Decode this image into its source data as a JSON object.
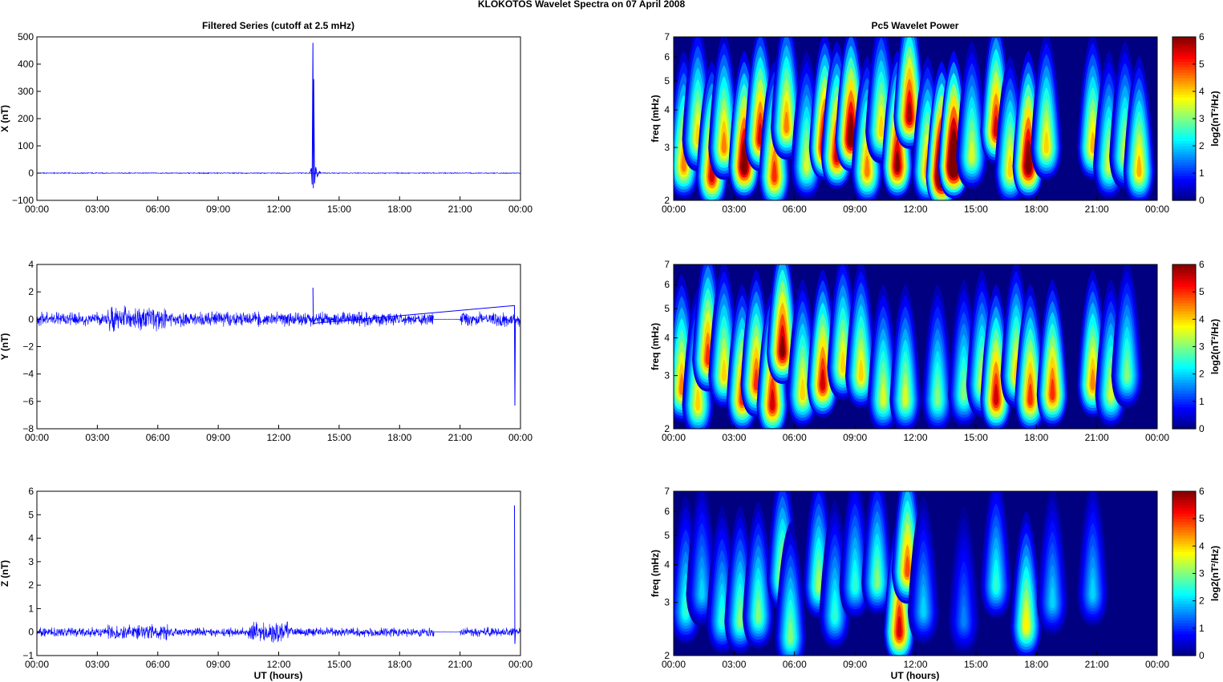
{
  "figure": {
    "title": "KLOKOTOS Wavelet Spectra on 07 April     2008",
    "left_title": "Filtered Series (cutoff at 2.5 mHz)",
    "right_title": "Pc5 Wavelet Power",
    "xlabel": "UT (hours)"
  },
  "colors": {
    "series_line": "#0000ff",
    "background": "#ffffff",
    "axes": "#000000"
  },
  "chart_data": [
    {
      "type": "line",
      "ylabel": "X (nT)",
      "x_ticks": [
        "00:00",
        "03:00",
        "06:00",
        "09:00",
        "12:00",
        "15:00",
        "18:00",
        "21:00",
        "00:00"
      ],
      "y_ticks": [
        "500",
        "400",
        "300",
        "200",
        "100",
        "0",
        "−100"
      ],
      "ylim": [
        -100,
        500
      ],
      "xlim_hours": [
        0,
        24
      ],
      "series": [
        {
          "noise_amplitude": 1.5,
          "gaps_hours": [],
          "spikes": [
            {
              "t": 13.55,
              "y": 0
            },
            {
              "t": 13.62,
              "y": 18
            },
            {
              "t": 13.66,
              "y": -42
            },
            {
              "t": 13.7,
              "y": 478
            },
            {
              "t": 13.72,
              "y": -55
            },
            {
              "t": 13.74,
              "y": 345
            },
            {
              "t": 13.78,
              "y": -38
            },
            {
              "t": 13.84,
              "y": 22
            },
            {
              "t": 13.92,
              "y": -12
            },
            {
              "t": 14.02,
              "y": 6
            },
            {
              "t": 14.1,
              "y": 0
            }
          ]
        }
      ]
    },
    {
      "type": "line",
      "ylabel": "Y (nT)",
      "x_ticks": [
        "00:00",
        "03:00",
        "06:00",
        "09:00",
        "12:00",
        "15:00",
        "18:00",
        "21:00",
        "00:00"
      ],
      "y_ticks": [
        "4",
        "2",
        "0",
        "−2",
        "−4",
        "−6",
        "−8"
      ],
      "ylim": [
        -8,
        4
      ],
      "xlim_hours": [
        0,
        24
      ],
      "series": [
        {
          "noise_amplitude": 0.4,
          "gaps_hours": [
            [
              19.7,
              21.0
            ]
          ],
          "spikes": [
            {
              "t": 13.7,
              "y": 2.3
            },
            {
              "t": 13.72,
              "y": -0.3
            },
            {
              "t": 23.7,
              "y": 1.0
            },
            {
              "t": 23.72,
              "y": -6.3
            },
            {
              "t": 23.75,
              "y": 0
            }
          ]
        }
      ]
    },
    {
      "type": "line",
      "ylabel": "Z (nT)",
      "x_ticks": [
        "00:00",
        "03:00",
        "06:00",
        "09:00",
        "12:00",
        "15:00",
        "18:00",
        "21:00",
        "00:00"
      ],
      "y_ticks": [
        "6",
        "5",
        "4",
        "3",
        "2",
        "1",
        "0",
        "−1"
      ],
      "ylim": [
        -1,
        6
      ],
      "xlim_hours": [
        0,
        24
      ],
      "series": [
        {
          "noise_amplitude": 0.15,
          "gaps_hours": [
            [
              19.7,
              21.0
            ]
          ],
          "spikes": [
            {
              "t": 23.7,
              "y": 5.4
            },
            {
              "t": 23.72,
              "y": -0.5
            },
            {
              "t": 23.75,
              "y": 0
            }
          ]
        }
      ]
    },
    {
      "type": "heatmap",
      "ylabel": "freq (mHz)",
      "x_ticks": [
        "00:00",
        "03:00",
        "06:00",
        "09:00",
        "12:00",
        "15:00",
        "18:00",
        "21:00",
        "00:00"
      ],
      "y_ticks": [
        "7",
        "6",
        "5",
        "4",
        "3",
        "2"
      ],
      "y_tick_values": [
        7,
        6,
        5,
        4,
        3,
        2
      ],
      "ylim_mhz": [
        2,
        7
      ],
      "y_scale": "log",
      "colorbar": {
        "label": "log2(nT²/Hz)",
        "ticks": [
          "6",
          "5",
          "4",
          "3",
          "2",
          "1",
          "0"
        ],
        "range": [
          0,
          6
        ],
        "colormap": "jet"
      },
      "blobs": [
        {
          "t": 0.5,
          "f": 2.6,
          "p": 4.5
        },
        {
          "t": 1.2,
          "f": 3.2,
          "p": 4.0
        },
        {
          "t": 1.9,
          "f": 2.4,
          "p": 5.5
        },
        {
          "t": 2.5,
          "f": 3.0,
          "p": 4.5
        },
        {
          "t": 3.5,
          "f": 2.6,
          "p": 6.5
        },
        {
          "t": 4.3,
          "f": 3.2,
          "p": 5.5
        },
        {
          "t": 5.0,
          "f": 2.4,
          "p": 5.0
        },
        {
          "t": 5.6,
          "f": 3.5,
          "p": 4.5
        },
        {
          "t": 6.6,
          "f": 2.6,
          "p": 3.5
        },
        {
          "t": 7.5,
          "f": 3.0,
          "p": 6.2
        },
        {
          "t": 8.1,
          "f": 2.8,
          "p": 5.6
        },
        {
          "t": 8.8,
          "f": 3.2,
          "p": 6.5
        },
        {
          "t": 9.6,
          "f": 2.5,
          "p": 4.5
        },
        {
          "t": 10.3,
          "f": 3.4,
          "p": 4.0
        },
        {
          "t": 11.1,
          "f": 2.6,
          "p": 6.0
        },
        {
          "t": 11.7,
          "f": 3.8,
          "p": 5.8
        },
        {
          "t": 12.6,
          "f": 2.5,
          "p": 4.5
        },
        {
          "t": 13.3,
          "f": 2.4,
          "p": 8.0
        },
        {
          "t": 13.9,
          "f": 2.6,
          "p": 7.8
        },
        {
          "t": 14.8,
          "f": 2.8,
          "p": 3.5
        },
        {
          "t": 16.0,
          "f": 3.4,
          "p": 5.5
        },
        {
          "t": 16.7,
          "f": 2.5,
          "p": 4.0
        },
        {
          "t": 17.6,
          "f": 2.6,
          "p": 6.5
        },
        {
          "t": 18.5,
          "f": 3.0,
          "p": 4.0
        },
        {
          "t": 20.8,
          "f": 3.0,
          "p": 4.2
        },
        {
          "t": 21.6,
          "f": 2.6,
          "p": 3.5
        },
        {
          "t": 22.4,
          "f": 2.8,
          "p": 3.5
        },
        {
          "t": 23.1,
          "f": 2.5,
          "p": 4.2
        }
      ]
    },
    {
      "type": "heatmap",
      "ylabel": "freq (mHz)",
      "x_ticks": [
        "00:00",
        "03:00",
        "06:00",
        "09:00",
        "12:00",
        "15:00",
        "18:00",
        "21:00",
        "00:00"
      ],
      "y_ticks": [
        "7",
        "6",
        "5",
        "4",
        "3",
        "2"
      ],
      "y_tick_values": [
        7,
        6,
        5,
        4,
        3,
        2
      ],
      "ylim_mhz": [
        2,
        7
      ],
      "y_scale": "log",
      "colorbar": {
        "label": "log2(nT²/Hz)",
        "ticks": [
          "6",
          "5",
          "4",
          "3",
          "2",
          "1",
          "0"
        ],
        "range": [
          0,
          6
        ],
        "colormap": "jet"
      },
      "blobs": [
        {
          "t": 0.4,
          "f": 2.7,
          "p": 4.5
        },
        {
          "t": 1.2,
          "f": 2.4,
          "p": 4.0
        },
        {
          "t": 1.7,
          "f": 3.4,
          "p": 5.0
        },
        {
          "t": 2.5,
          "f": 3.0,
          "p": 4.0
        },
        {
          "t": 3.4,
          "f": 2.5,
          "p": 5.0
        },
        {
          "t": 4.1,
          "f": 2.8,
          "p": 5.0
        },
        {
          "t": 4.9,
          "f": 2.4,
          "p": 5.5
        },
        {
          "t": 5.4,
          "f": 3.6,
          "p": 6.0
        },
        {
          "t": 6.4,
          "f": 2.6,
          "p": 4.0
        },
        {
          "t": 7.4,
          "f": 2.8,
          "p": 5.5
        },
        {
          "t": 8.4,
          "f": 3.2,
          "p": 4.0
        },
        {
          "t": 9.3,
          "f": 3.0,
          "p": 4.0
        },
        {
          "t": 10.4,
          "f": 2.5,
          "p": 3.5
        },
        {
          "t": 11.5,
          "f": 2.5,
          "p": 3.5
        },
        {
          "t": 13.1,
          "f": 2.5,
          "p": 3.0
        },
        {
          "t": 14.4,
          "f": 2.6,
          "p": 3.0
        },
        {
          "t": 15.3,
          "f": 2.8,
          "p": 3.5
        },
        {
          "t": 16.0,
          "f": 2.5,
          "p": 5.5
        },
        {
          "t": 17.0,
          "f": 3.0,
          "p": 4.0
        },
        {
          "t": 17.7,
          "f": 2.5,
          "p": 5.0
        },
        {
          "t": 18.8,
          "f": 2.6,
          "p": 5.0
        },
        {
          "t": 20.8,
          "f": 2.8,
          "p": 4.5
        },
        {
          "t": 21.7,
          "f": 2.6,
          "p": 3.5
        },
        {
          "t": 22.5,
          "f": 3.0,
          "p": 3.0
        }
      ]
    },
    {
      "type": "heatmap",
      "ylabel": "freq (mHz)",
      "x_ticks": [
        "00:00",
        "03:00",
        "06:00",
        "09:00",
        "12:00",
        "15:00",
        "18:00",
        "21:00",
        "00:00"
      ],
      "y_ticks": [
        "7",
        "6",
        "5",
        "4",
        "3",
        "2"
      ],
      "y_tick_values": [
        7,
        6,
        5,
        4,
        3,
        2
      ],
      "ylim_mhz": [
        2,
        7
      ],
      "y_scale": "log",
      "colorbar": {
        "label": "log2(nT²/Hz)",
        "ticks": [
          "6",
          "5",
          "4",
          "3",
          "2",
          "1",
          "0"
        ],
        "range": [
          0,
          6
        ],
        "colormap": "jet"
      },
      "blobs": [
        {
          "t": 0.6,
          "f": 2.8,
          "p": 2.5
        },
        {
          "t": 1.4,
          "f": 3.2,
          "p": 2.0
        },
        {
          "t": 2.4,
          "f": 2.6,
          "p": 2.5
        },
        {
          "t": 3.3,
          "f": 2.6,
          "p": 3.0
        },
        {
          "t": 4.2,
          "f": 2.7,
          "p": 3.0
        },
        {
          "t": 5.4,
          "f": 3.6,
          "p": 3.5
        },
        {
          "t": 5.8,
          "f": 2.3,
          "p": 3.0
        },
        {
          "t": 7.2,
          "f": 3.4,
          "p": 3.2
        },
        {
          "t": 8.0,
          "f": 2.7,
          "p": 2.5
        },
        {
          "t": 9.0,
          "f": 3.4,
          "p": 2.5
        },
        {
          "t": 10.1,
          "f": 3.5,
          "p": 3.0
        },
        {
          "t": 11.2,
          "f": 2.4,
          "p": 5.5
        },
        {
          "t": 11.6,
          "f": 3.8,
          "p": 4.8
        },
        {
          "t": 12.4,
          "f": 2.8,
          "p": 2.0
        },
        {
          "t": 14.4,
          "f": 2.6,
          "p": 1.5
        },
        {
          "t": 16.0,
          "f": 3.4,
          "p": 2.5
        },
        {
          "t": 17.5,
          "f": 2.5,
          "p": 3.8
        },
        {
          "t": 18.8,
          "f": 3.0,
          "p": 2.0
        },
        {
          "t": 20.8,
          "f": 3.2,
          "p": 2.0
        }
      ]
    }
  ]
}
